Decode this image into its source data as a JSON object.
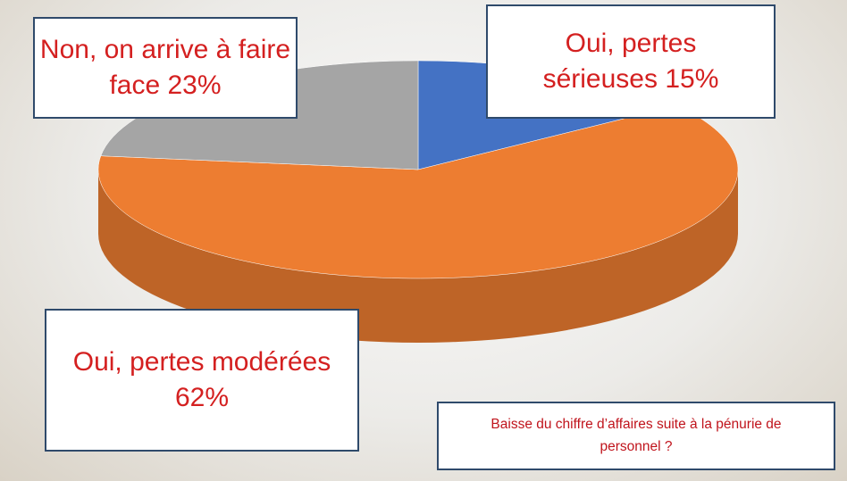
{
  "chart_data": {
    "type": "pie3d",
    "title": "Baisse du chiffre d’affaires suite à la pénurie de personnel ?",
    "categories": [
      "Oui, pertes sérieuses",
      "Oui, pertes modérées",
      "Non, on arrive à faire face"
    ],
    "values": [
      15,
      62,
      23
    ],
    "value_labels": [
      "15%",
      "62%",
      "23%"
    ],
    "colors": [
      "#4472c4",
      "#ed7d31",
      "#a5a5a5"
    ]
  }
}
